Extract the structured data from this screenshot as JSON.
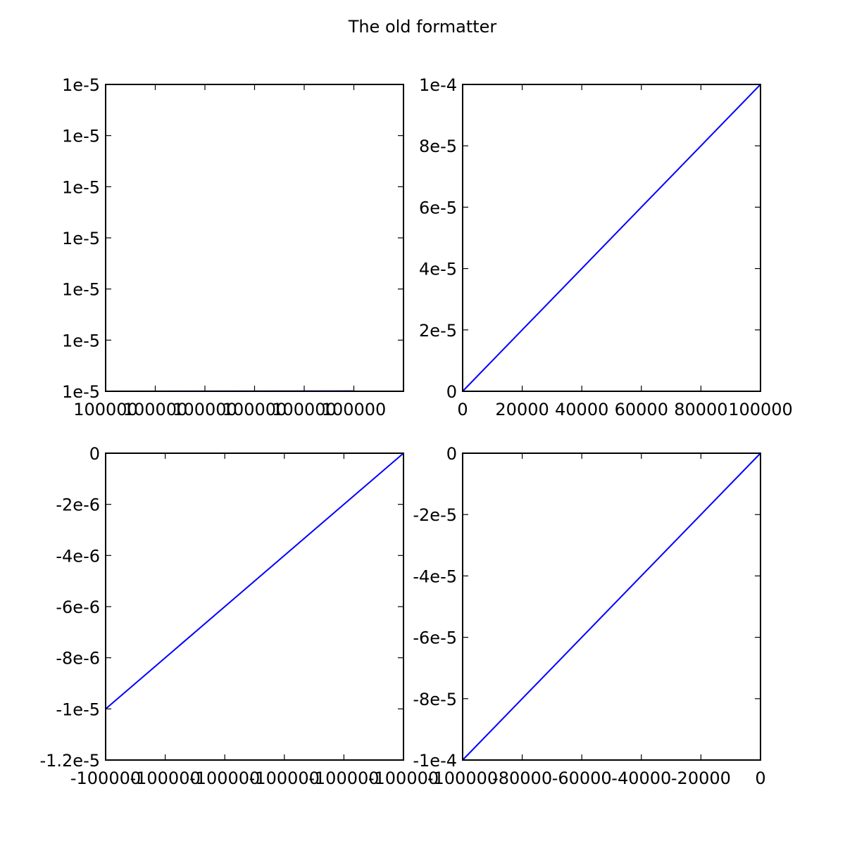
{
  "figure": {
    "title": "The old formatter"
  },
  "chart_data": [
    {
      "type": "line",
      "series": [
        {
          "x": [
            100000,
            100000.1
          ],
          "y": [
            1e-05,
            1.00001e-05
          ],
          "color": "#0000ff"
        }
      ],
      "xlim": [
        100000,
        100000.12
      ],
      "ylim": [
        1e-05,
        1.012e-05
      ],
      "xticks": [
        100000,
        100000.02,
        100000.04,
        100000.06,
        100000.08,
        100000.1
      ],
      "xtick_labels": [
        "100000",
        "100000",
        "100000",
        "100000",
        "100000",
        "100000"
      ],
      "yticks": [
        1e-05,
        1.002e-05,
        1.004e-05,
        1.006e-05,
        1.008e-05,
        1.01e-05,
        1.012e-05
      ],
      "ytick_labels": [
        "1e-5",
        "1e-5",
        "1e-5",
        "1e-5",
        "1e-5",
        "1e-5",
        "1e-5"
      ],
      "xlabel": "",
      "ylabel": "",
      "grid": false
    },
    {
      "type": "line",
      "series": [
        {
          "x": [
            0,
            100000
          ],
          "y": [
            0,
            0.0001
          ],
          "color": "#0000ff"
        }
      ],
      "xlim": [
        0,
        100000
      ],
      "ylim": [
        0,
        0.0001
      ],
      "xticks": [
        0,
        20000,
        40000,
        60000,
        80000,
        100000
      ],
      "xtick_labels": [
        "0",
        "20000",
        "40000",
        "60000",
        "80000",
        "100000"
      ],
      "yticks": [
        0,
        2e-05,
        4e-05,
        6e-05,
        8e-05,
        0.0001
      ],
      "ytick_labels": [
        "0",
        "2e-5",
        "4e-5",
        "6e-5",
        "8e-5",
        "1e-4"
      ],
      "xlabel": "",
      "ylabel": "",
      "grid": false
    },
    {
      "type": "line",
      "series": [
        {
          "x": [
            -100000,
            -99999.9
          ],
          "y": [
            -1e-05,
            0
          ],
          "color": "#0000ff"
        }
      ],
      "xlim": [
        -100000,
        -99999.9
      ],
      "ylim": [
        -1.2e-05,
        0
      ],
      "xticks": [
        -100000,
        -99999.98,
        -99999.96,
        -99999.94,
        -99999.92,
        -99999.9
      ],
      "xtick_labels": [
        "-100000",
        "-100000",
        "-100000",
        "-100000",
        "-100000",
        "-100000"
      ],
      "yticks": [
        -1.2e-05,
        -1e-05,
        -8e-06,
        -6e-06,
        -4e-06,
        -2e-06,
        0
      ],
      "ytick_labels": [
        "-1.2e-5",
        "-1e-5",
        "-8e-6",
        "-6e-6",
        "-4e-6",
        "-2e-6",
        "0"
      ],
      "xlabel": "",
      "ylabel": "",
      "grid": false
    },
    {
      "type": "line",
      "series": [
        {
          "x": [
            -100000,
            0
          ],
          "y": [
            -0.0001,
            0
          ],
          "color": "#0000ff"
        }
      ],
      "xlim": [
        -100000,
        0
      ],
      "ylim": [
        -0.0001,
        0
      ],
      "xticks": [
        -100000,
        -80000,
        -60000,
        -40000,
        -20000,
        0
      ],
      "xtick_labels": [
        "-100000",
        "-80000",
        "-60000",
        "-40000",
        "-20000",
        "0"
      ],
      "yticks": [
        -0.0001,
        -8e-05,
        -6e-05,
        -4e-05,
        -2e-05,
        0
      ],
      "ytick_labels": [
        "-1e-4",
        "-8e-5",
        "-6e-5",
        "-4e-5",
        "-2e-5",
        "0"
      ],
      "xlabel": "",
      "ylabel": "",
      "grid": false
    }
  ]
}
